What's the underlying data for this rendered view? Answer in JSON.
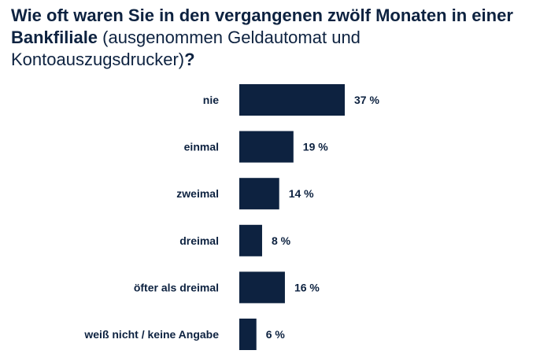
{
  "title": {
    "bold_part": "Wie oft waren Sie in den vergangenen zwölf Monaten in einer Bankfiliale",
    "normal_part": " (ausgenommen Geldautomat und Kontoauszugsdrucker)",
    "end_part": "?"
  },
  "colors": {
    "bar": "#0d2240",
    "text": "#0d2240"
  },
  "chart_data": {
    "type": "bar",
    "orientation": "horizontal",
    "categories": [
      "nie",
      "einmal",
      "zweimal",
      "dreimal",
      "öfter als dreimal",
      "weiß nicht / keine Angabe"
    ],
    "values": [
      37,
      19,
      14,
      8,
      16,
      6
    ],
    "value_labels": [
      "37 %",
      "19 %",
      "14 %",
      "8 %",
      "16 %",
      "6 %"
    ],
    "xlim": [
      0,
      37
    ],
    "grid": false,
    "legend": "none"
  }
}
